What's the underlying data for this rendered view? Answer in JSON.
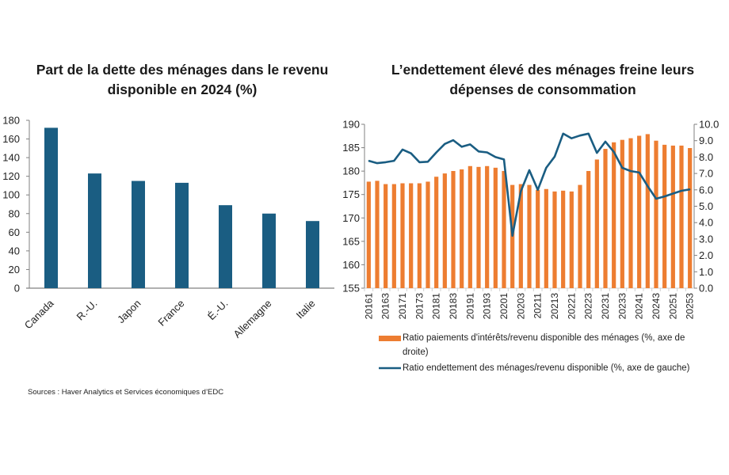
{
  "source": "Sources : Haver Analytics et Services économiques d’EDC",
  "colors": {
    "navy": "#1a5d82",
    "orange": "#ed7d31",
    "axis": "#808080"
  },
  "chart_data": [
    {
      "type": "bar",
      "title": "Part de la dette des ménages dans le revenu disponible en 2024 (%)",
      "categories": [
        "Canada",
        "R.-U.",
        "Japon",
        "France",
        "É.-U.",
        "Allemagne",
        "Italie"
      ],
      "values": [
        172,
        123,
        115,
        113,
        89,
        80,
        72
      ],
      "ylim": [
        0,
        180
      ],
      "yticks": [
        "0",
        "20",
        "40",
        "60",
        "80",
        "100",
        "120",
        "140",
        "160",
        "180"
      ],
      "grid": false
    },
    {
      "type": "bar+line",
      "title": "L’endettement élevé des ménages freine leurs dépenses de consommation",
      "x": [
        "20161",
        "20162",
        "20163",
        "20164",
        "20171",
        "20172",
        "20173",
        "20174",
        "20181",
        "20182",
        "20183",
        "20184",
        "20191",
        "20192",
        "20193",
        "20194",
        "20201",
        "20202",
        "20203",
        "20204",
        "20211",
        "20212",
        "20213",
        "20214",
        "20221",
        "20222",
        "20223",
        "20224",
        "20231",
        "20232",
        "20233",
        "20234",
        "20241",
        "20242",
        "20243",
        "20244",
        "20251",
        "20252",
        "20253"
      ],
      "xtick_labels": [
        "20161",
        "20163",
        "20171",
        "20173",
        "20181",
        "20183",
        "20191",
        "20193",
        "20201",
        "20203",
        "20211",
        "20213",
        "20221",
        "20223",
        "20231",
        "20233",
        "20241",
        "20243",
        "20251",
        "20253"
      ],
      "series": [
        {
          "name": "Ratio paiements d'intérêts/revenu disponible des ménages (%, axe de droite)",
          "type": "bar",
          "axis": "right",
          "values": [
            6.5,
            6.55,
            6.35,
            6.35,
            6.4,
            6.4,
            6.4,
            6.5,
            6.8,
            7.0,
            7.15,
            7.25,
            7.45,
            7.4,
            7.45,
            7.35,
            7.15,
            6.3,
            6.35,
            6.3,
            6.0,
            6.05,
            5.9,
            5.95,
            5.9,
            6.3,
            7.15,
            7.85,
            8.5,
            8.9,
            9.05,
            9.15,
            9.3,
            9.4,
            9.0,
            8.75,
            8.7,
            8.7,
            8.55
          ]
        },
        {
          "name": "Ratio endettement des ménages/revenu disponible (%, axe de gauche)",
          "type": "line",
          "axis": "left",
          "values": [
            182.2,
            181.7,
            181.9,
            182.2,
            184.6,
            183.8,
            181.9,
            182.0,
            184.0,
            185.8,
            186.6,
            185.2,
            185.7,
            184.2,
            184.0,
            183.0,
            182.5,
            166.2,
            175.7,
            180.2,
            176.0,
            180.7,
            183.1,
            188.0,
            187.0,
            187.6,
            188.0,
            183.9,
            186.3,
            184.1,
            180.7,
            180.0,
            179.7,
            176.8,
            174.1,
            174.6,
            175.2,
            175.8,
            176.1
          ]
        }
      ],
      "ylim_left": [
        155,
        190
      ],
      "yticks_left": [
        "155",
        "160",
        "165",
        "170",
        "175",
        "180",
        "185",
        "190"
      ],
      "ylim_right": [
        0,
        10
      ],
      "yticks_right": [
        "0.0",
        "1.0",
        "2.0",
        "3.0",
        "4.0",
        "5.0",
        "6.0",
        "7.0",
        "8.0",
        "9.0",
        "10.0"
      ],
      "legend": "bottom",
      "grid": false
    }
  ]
}
